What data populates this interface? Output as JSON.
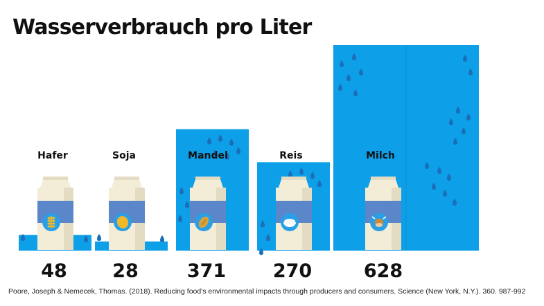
{
  "colors": {
    "water": "#0d9fe8",
    "drop": "#1a6fb8",
    "carton_body": "#f3edd8",
    "carton_shade": "#e3dcc3",
    "carton_label": "#5b86c9",
    "icon_bg": "#29a0e6",
    "icon_fg": "#f2b82c",
    "text": "#111111"
  },
  "chart_data": {
    "type": "bar",
    "title": "Wasserverbrauch pro Liter",
    "categories": [
      "Hafer",
      "Soja",
      "Mandel",
      "Reis",
      "Milch"
    ],
    "values": [
      48,
      28,
      371,
      270,
      628
    ],
    "icons": [
      "wheat-icon",
      "soybean-icon",
      "almond-icon",
      "rice-bowl-icon",
      "cow-icon"
    ],
    "xlabel": "",
    "ylabel": "",
    "grid": false,
    "legend": "none"
  },
  "source": "Poore, Joseph & Nemecek, Thomas. (2018). Reducing food's environmental impacts through producers and consumers. Science (New York, N.Y.). 360. 987-992"
}
